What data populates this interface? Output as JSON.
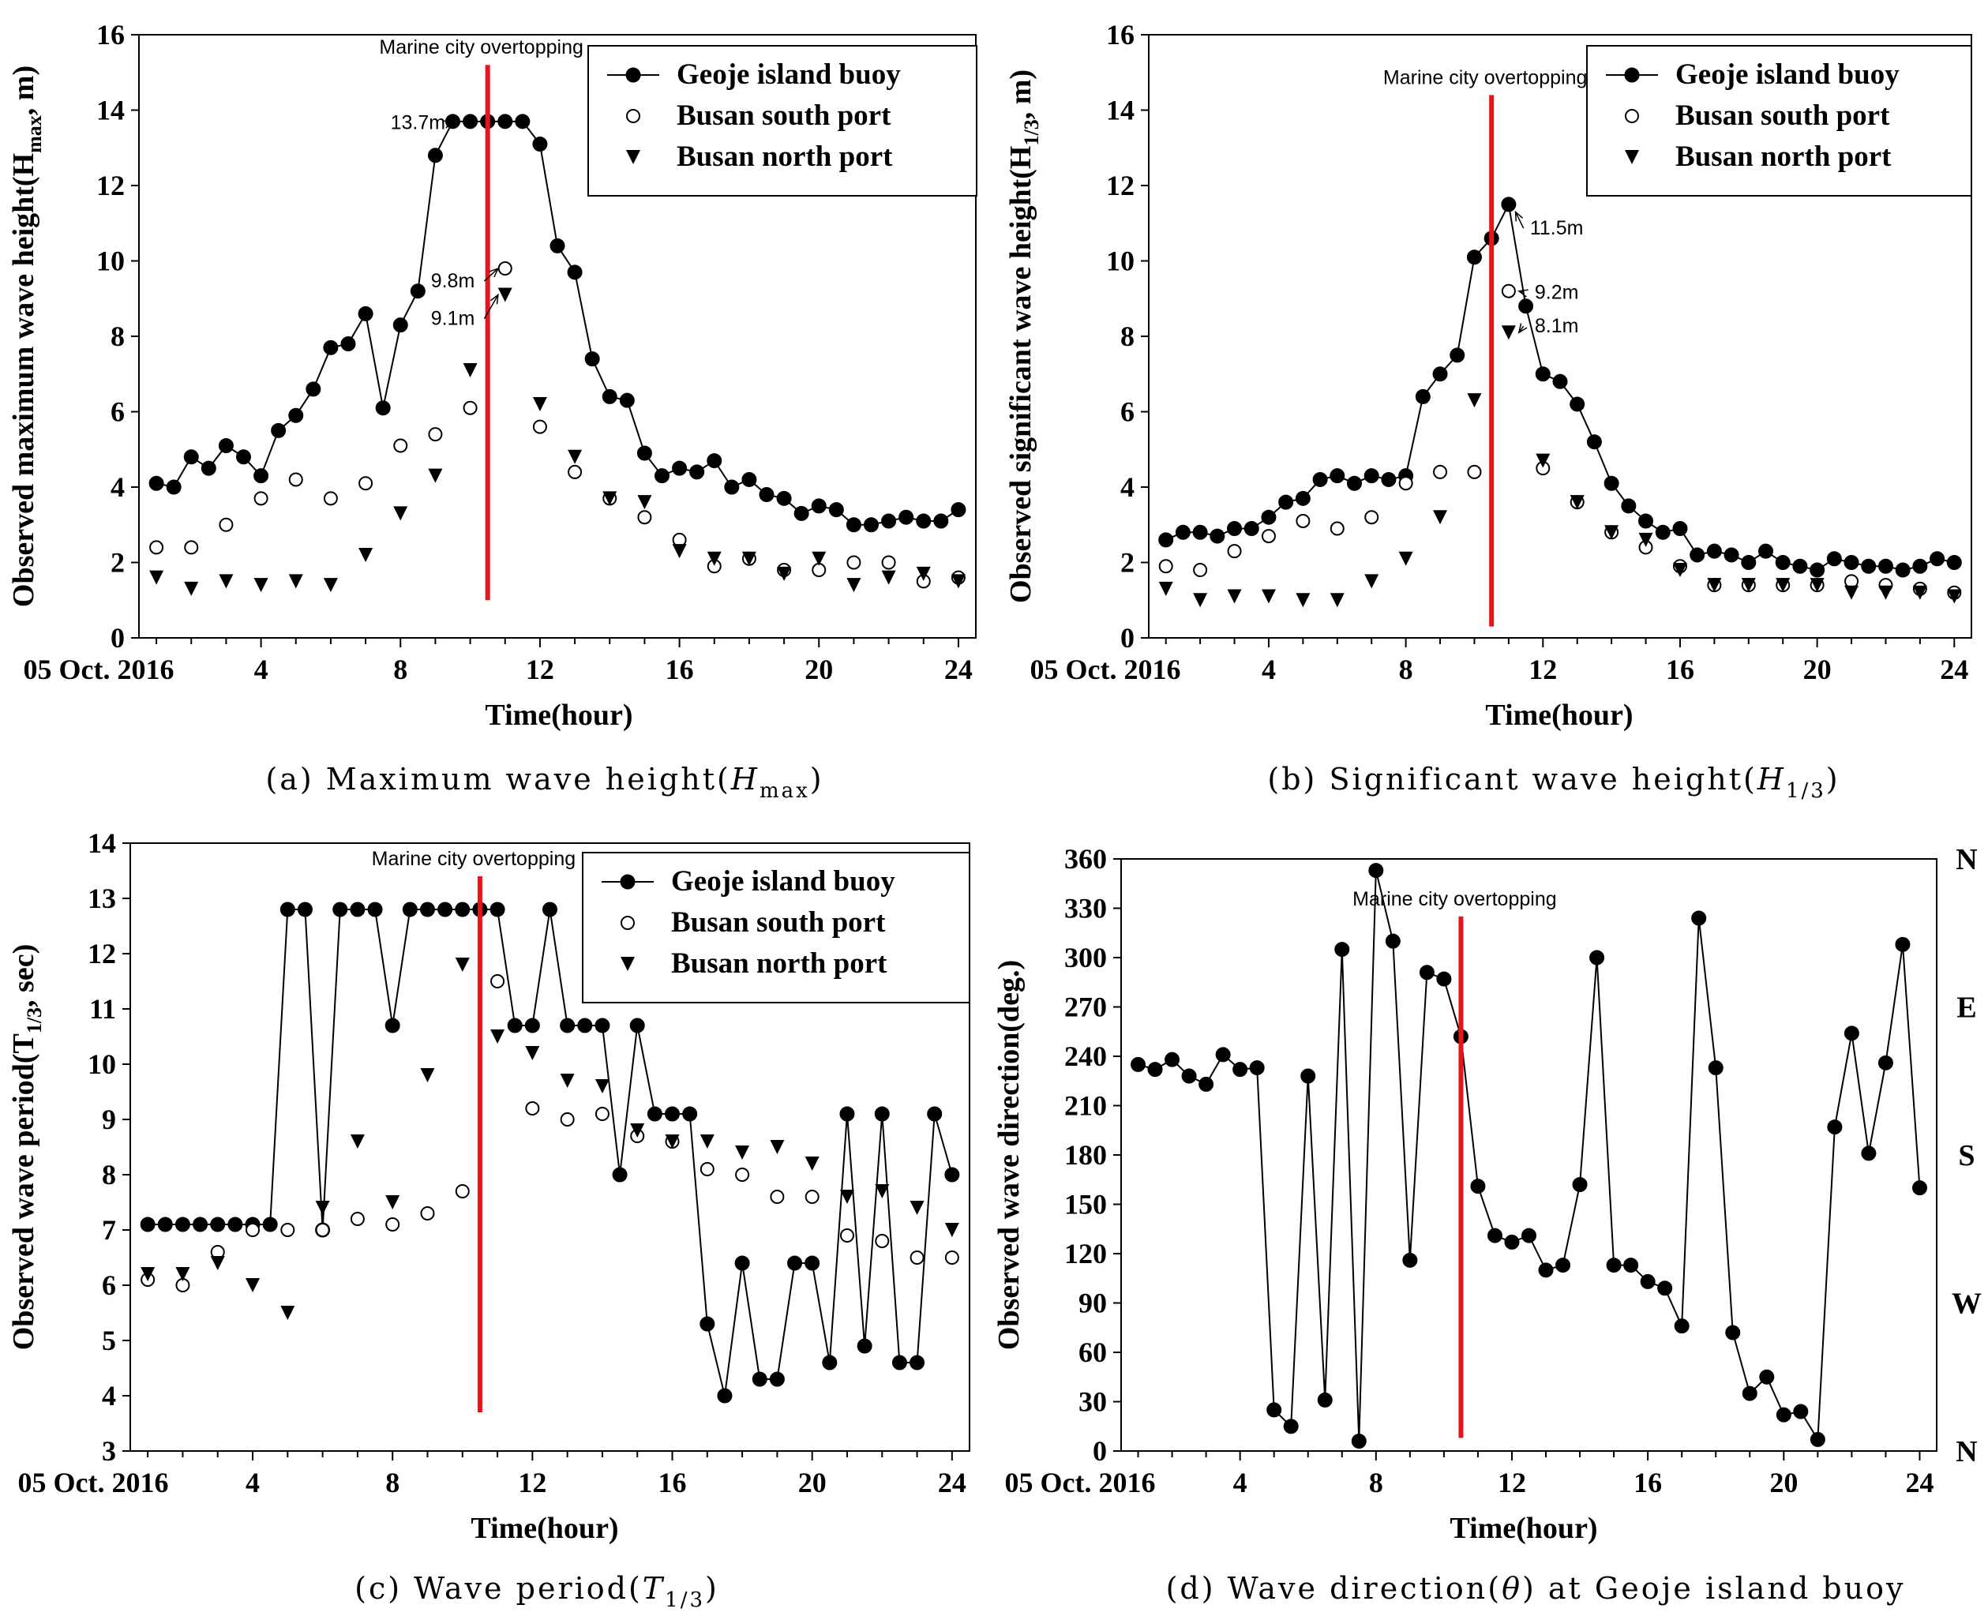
{
  "chart_data": [
    {
      "id": "a",
      "type": "line",
      "caption": "(a) Maximum wave height(Hmax)",
      "caption_parts": {
        "prefix": "(a) Maximum wave height(",
        "var": "H",
        "sub": "max",
        "suffix": ")"
      },
      "ylabel": "Observed maximum wave height(Hmax, m)",
      "ylabel_parts": {
        "prefix": "Observed maximum wave height(H",
        "sub": "max",
        "suffix": ", m)"
      },
      "xlabel": "Time(hour)",
      "date_label": "05 Oct. 2016",
      "xlim": [
        0.5,
        24.5
      ],
      "ylim": [
        0,
        16
      ],
      "xticks": [
        4,
        8,
        12,
        16,
        20,
        24
      ],
      "yticks": [
        0,
        2,
        4,
        6,
        8,
        10,
        12,
        14,
        16
      ],
      "event_label": "Marine city overtopping",
      "event_x": 10.5,
      "event_y": [
        1,
        15.2
      ],
      "legend": [
        "Geoje island buoy",
        "Busan south port",
        "Busan north port"
      ],
      "series": [
        {
          "name": "Geoje island buoy",
          "marker": "filled-circle",
          "line": true,
          "x": [
            1,
            1.5,
            2,
            2.5,
            3,
            3.5,
            4,
            4.5,
            5,
            5.5,
            6,
            6.5,
            7,
            7.5,
            8,
            8.5,
            9,
            9.5,
            10,
            10.5,
            11,
            11.5,
            12,
            12.5,
            13,
            13.5,
            14,
            14.5,
            15,
            15.5,
            16,
            16.5,
            17,
            17.5,
            18,
            18.5,
            19,
            19.5,
            20,
            20.5,
            21,
            21.5,
            22,
            22.5,
            23,
            23.5,
            24
          ],
          "y": [
            4.1,
            4.0,
            4.8,
            4.5,
            5.1,
            4.8,
            4.3,
            5.5,
            5.9,
            6.6,
            7.7,
            7.8,
            8.6,
            6.1,
            8.3,
            9.2,
            12.8,
            13.7,
            13.7,
            13.7,
            13.7,
            13.7,
            13.1,
            10.4,
            9.7,
            7.4,
            6.4,
            6.3,
            4.9,
            4.3,
            4.5,
            4.4,
            4.7,
            4.0,
            4.2,
            3.8,
            3.7,
            3.3,
            3.5,
            3.4,
            3.0,
            3.0,
            3.1,
            3.2,
            3.1,
            3.1,
            3.4
          ]
        },
        {
          "name": "Busan south port",
          "marker": "open-circle",
          "line": false,
          "x": [
            1,
            2,
            3,
            4,
            5,
            6,
            7,
            8,
            9,
            10,
            11,
            12,
            13,
            14,
            15,
            16,
            17,
            18,
            19,
            20,
            21,
            22,
            23,
            24
          ],
          "y": [
            2.4,
            2.4,
            3.0,
            3.7,
            4.2,
            3.7,
            4.1,
            5.1,
            5.4,
            6.1,
            9.8,
            5.6,
            4.4,
            3.7,
            3.2,
            2.6,
            1.9,
            2.1,
            1.8,
            1.8,
            2.0,
            2.0,
            1.5,
            1.6
          ]
        },
        {
          "name": "Busan north port",
          "marker": "triangle-down",
          "line": false,
          "x": [
            1,
            2,
            3,
            4,
            5,
            6,
            7,
            8,
            9,
            10,
            11,
            12,
            13,
            14,
            15,
            16,
            17,
            18,
            19,
            20,
            21,
            22,
            23,
            24
          ],
          "y": [
            1.6,
            1.3,
            1.5,
            1.4,
            1.5,
            1.4,
            2.2,
            3.3,
            4.3,
            7.1,
            9.1,
            6.2,
            4.8,
            3.7,
            3.6,
            2.3,
            2.1,
            2.1,
            1.7,
            2.1,
            1.4,
            1.6,
            1.7,
            1.5
          ]
        }
      ],
      "annotations": [
        {
          "text": "13.7m",
          "x": 8.5,
          "y": 13.5,
          "ax": 9.5,
          "ay": 13.7
        },
        {
          "text": "9.8m",
          "x": 9.5,
          "y": 9.3,
          "ax": 10.8,
          "ay": 9.8
        },
        {
          "text": "9.1m",
          "x": 9.5,
          "y": 8.3,
          "ax": 10.8,
          "ay": 9.1
        }
      ]
    },
    {
      "id": "b",
      "type": "line",
      "caption": "(b) Significant wave height(H1/3)",
      "caption_parts": {
        "prefix": "(b) Significant wave height(",
        "var": "H",
        "sub": "1/3",
        "suffix": ")"
      },
      "ylabel": "Observed significant wave height(H1/3, m)",
      "ylabel_parts": {
        "prefix": "Observed significant wave height(H",
        "sub": "1/3",
        "suffix": ", m)"
      },
      "xlabel": "Time(hour)",
      "date_label": "05 Oct. 2016",
      "xlim": [
        0.5,
        24.5
      ],
      "ylim": [
        0,
        16
      ],
      "xticks": [
        4,
        8,
        12,
        16,
        20,
        24
      ],
      "yticks": [
        0,
        2,
        4,
        6,
        8,
        10,
        12,
        14,
        16
      ],
      "event_label": "Marine city overtopping",
      "event_x": 10.5,
      "event_y": [
        0.3,
        14.4
      ],
      "legend": [
        "Geoje island buoy",
        "Busan south port",
        "Busan north port"
      ],
      "series": [
        {
          "name": "Geoje island buoy",
          "marker": "filled-circle",
          "line": true,
          "x": [
            1,
            1.5,
            2,
            2.5,
            3,
            3.5,
            4,
            4.5,
            5,
            5.5,
            6,
            6.5,
            7,
            7.5,
            8,
            8.5,
            9,
            9.5,
            10,
            10.5,
            11,
            11.5,
            12,
            12.5,
            13,
            13.5,
            14,
            14.5,
            15,
            15.5,
            16,
            16.5,
            17,
            17.5,
            18,
            18.5,
            19,
            19.5,
            20,
            20.5,
            21,
            21.5,
            22,
            22.5,
            23,
            23.5,
            24
          ],
          "y": [
            2.6,
            2.8,
            2.8,
            2.7,
            2.9,
            2.9,
            3.2,
            3.6,
            3.7,
            4.2,
            4.3,
            4.1,
            4.3,
            4.2,
            4.3,
            6.4,
            7.0,
            7.5,
            10.1,
            10.6,
            11.5,
            8.8,
            7.0,
            6.8,
            6.2,
            5.2,
            4.1,
            3.5,
            3.1,
            2.8,
            2.9,
            2.2,
            2.3,
            2.2,
            2.0,
            2.3,
            2.0,
            1.9,
            1.8,
            2.1,
            2.0,
            1.9,
            1.9,
            1.8,
            1.9,
            2.1,
            2.0
          ]
        },
        {
          "name": "Busan south port",
          "marker": "open-circle",
          "line": false,
          "x": [
            1,
            2,
            3,
            4,
            5,
            6,
            7,
            8,
            9,
            10,
            11,
            12,
            13,
            14,
            15,
            16,
            17,
            18,
            19,
            20,
            21,
            22,
            23,
            24
          ],
          "y": [
            1.9,
            1.8,
            2.3,
            2.7,
            3.1,
            2.9,
            3.2,
            4.1,
            4.4,
            4.4,
            9.2,
            4.5,
            3.6,
            2.8,
            2.4,
            1.9,
            1.4,
            1.4,
            1.4,
            1.4,
            1.5,
            1.4,
            1.3,
            1.2
          ]
        },
        {
          "name": "Busan north port",
          "marker": "triangle-down",
          "line": false,
          "x": [
            1,
            2,
            3,
            4,
            5,
            6,
            7,
            8,
            9,
            10,
            11,
            12,
            13,
            14,
            15,
            16,
            17,
            18,
            19,
            20,
            21,
            22,
            23,
            24
          ],
          "y": [
            1.3,
            1.0,
            1.1,
            1.1,
            1.0,
            1.0,
            1.5,
            2.1,
            3.2,
            6.3,
            8.1,
            4.7,
            3.6,
            2.8,
            2.6,
            1.8,
            1.4,
            1.4,
            1.4,
            1.4,
            1.2,
            1.2,
            1.2,
            1.1
          ]
        }
      ],
      "annotations": [
        {
          "text": "11.5m",
          "x": 12.4,
          "y": 10.7,
          "ax": 11.2,
          "ay": 11.3
        },
        {
          "text": "9.2m",
          "x": 12.4,
          "y": 9.0,
          "ax": 11.3,
          "ay": 9.2
        },
        {
          "text": "8.1m",
          "x": 12.4,
          "y": 8.1,
          "ax": 11.3,
          "ay": 8.1
        }
      ]
    },
    {
      "id": "c",
      "type": "line",
      "caption": "(c) Wave period(T1/3)",
      "caption_parts": {
        "prefix": "(c) Wave period(",
        "var": "T",
        "sub": "1/3",
        "suffix": ")"
      },
      "ylabel": "Observed wave period(T1/3, sec)",
      "ylabel_parts": {
        "prefix": "Observed wave period(T",
        "sub": "1/3",
        "suffix": ", sec)"
      },
      "xlabel": "Time(hour)",
      "date_label": "05 Oct. 2016",
      "xlim": [
        0.5,
        24.5
      ],
      "ylim": [
        3,
        14
      ],
      "xticks": [
        4,
        8,
        12,
        16,
        20,
        24
      ],
      "yticks": [
        3,
        4,
        5,
        6,
        7,
        8,
        9,
        10,
        11,
        12,
        13,
        14
      ],
      "event_label": "Marine city overtopping",
      "event_x": 10.5,
      "event_y": [
        3.7,
        13.4
      ],
      "legend": [
        "Geoje island buoy",
        "Busan south port",
        "Busan north port"
      ],
      "series": [
        {
          "name": "Geoje island buoy",
          "marker": "filled-circle",
          "line": true,
          "x": [
            1,
            1.5,
            2,
            2.5,
            3,
            3.5,
            4,
            4.5,
            5,
            5.5,
            6,
            6.5,
            7,
            7.5,
            8,
            8.5,
            9,
            9.5,
            10,
            10.5,
            11,
            11.5,
            12,
            12.5,
            13,
            13.5,
            14,
            14.5,
            15,
            15.5,
            16,
            16.5,
            17,
            17.5,
            18,
            18.5,
            19,
            19.5,
            20,
            20.5,
            21,
            21.5,
            22,
            22.5,
            23,
            23.5,
            24
          ],
          "y": [
            7.1,
            7.1,
            7.1,
            7.1,
            7.1,
            7.1,
            7.1,
            7.1,
            12.8,
            12.8,
            7.0,
            12.8,
            12.8,
            12.8,
            10.7,
            12.8,
            12.8,
            12.8,
            12.8,
            12.8,
            12.8,
            10.7,
            10.7,
            12.8,
            10.7,
            10.7,
            10.7,
            8.0,
            10.7,
            9.1,
            9.1,
            9.1,
            5.3,
            4.0,
            6.4,
            4.3,
            4.3,
            6.4,
            6.4,
            4.6,
            9.1,
            4.9,
            9.1,
            4.6,
            4.6,
            9.1,
            8.0
          ]
        },
        {
          "name": "Busan south port",
          "marker": "open-circle",
          "line": false,
          "x": [
            1,
            2,
            3,
            4,
            5,
            6,
            7,
            8,
            9,
            10,
            11,
            12,
            13,
            14,
            15,
            16,
            17,
            18,
            19,
            20,
            21,
            22,
            23,
            24
          ],
          "y": [
            6.1,
            6.0,
            6.6,
            7.0,
            7.0,
            7.0,
            7.2,
            7.1,
            7.3,
            7.7,
            11.5,
            9.2,
            9.0,
            9.1,
            8.7,
            8.6,
            8.1,
            8.0,
            7.6,
            7.6,
            6.9,
            6.8,
            6.5,
            6.5
          ]
        },
        {
          "name": "Busan north port",
          "marker": "triangle-down",
          "line": false,
          "x": [
            1,
            2,
            3,
            4,
            5,
            6,
            7,
            8,
            9,
            10,
            11,
            12,
            13,
            14,
            15,
            16,
            17,
            18,
            19,
            20,
            21,
            22,
            23,
            24
          ],
          "y": [
            6.2,
            6.2,
            6.4,
            6.0,
            5.5,
            7.4,
            8.6,
            7.5,
            9.8,
            11.8,
            10.5,
            10.2,
            9.7,
            9.6,
            8.8,
            8.6,
            8.6,
            8.4,
            8.5,
            8.2,
            7.6,
            7.7,
            7.4,
            7.0
          ]
        }
      ],
      "annotations": []
    },
    {
      "id": "d",
      "type": "line",
      "caption": "(d) Wave direction(θ) at Geoje island buoy",
      "caption_parts": {
        "prefix": "(d) Wave direction(",
        "var": "θ",
        "sub": "",
        "suffix": ") at Geoje island buoy"
      },
      "ylabel": "Observed wave direction(deg.)",
      "ylabel_parts": {
        "prefix": "Observed wave direction(deg.)",
        "sub": "",
        "suffix": ""
      },
      "xlabel": "Time(hour)",
      "date_label": "05 Oct. 2016",
      "xlim": [
        0.5,
        24.5
      ],
      "ylim": [
        0,
        360
      ],
      "xticks": [
        4,
        8,
        12,
        16,
        20,
        24
      ],
      "yticks": [
        0,
        30,
        60,
        90,
        120,
        150,
        180,
        210,
        240,
        270,
        300,
        330,
        360
      ],
      "event_label": "Marine city overtopping",
      "event_x": 10.5,
      "event_y": [
        8,
        325
      ],
      "legend": [],
      "compass": [
        {
          "label": "N",
          "value": 360
        },
        {
          "label": "E",
          "value": 270
        },
        {
          "label": "S",
          "value": 180
        },
        {
          "label": "W",
          "value": 90
        },
        {
          "label": "N",
          "value": 0
        }
      ],
      "series": [
        {
          "name": "Geoje island buoy",
          "marker": "filled-circle",
          "line": true,
          "x": [
            1,
            1.5,
            2,
            2.5,
            3,
            3.5,
            4,
            4.5,
            5,
            5.5,
            6,
            6.5,
            7,
            7.5,
            8,
            8.5,
            9,
            9.5,
            10,
            10.5,
            11,
            11.5,
            12,
            12.5,
            13,
            13.5,
            14,
            14.5,
            15,
            15.5,
            16,
            16.5,
            17,
            17.5,
            18,
            18.5,
            19,
            19.5,
            20,
            20.5,
            21,
            21.5,
            22,
            22.5,
            23,
            23.5,
            24
          ],
          "y": [
            235,
            232,
            238,
            228,
            223,
            241,
            232,
            233,
            25,
            15,
            228,
            31,
            305,
            6,
            353,
            310,
            116,
            291,
            287,
            252,
            161,
            131,
            127,
            131,
            110,
            113,
            162,
            300,
            113,
            113,
            103,
            99,
            76,
            324,
            233,
            72,
            35,
            45,
            22,
            24,
            7,
            197,
            254,
            181,
            236,
            308,
            160
          ]
        }
      ],
      "annotations": []
    }
  ]
}
